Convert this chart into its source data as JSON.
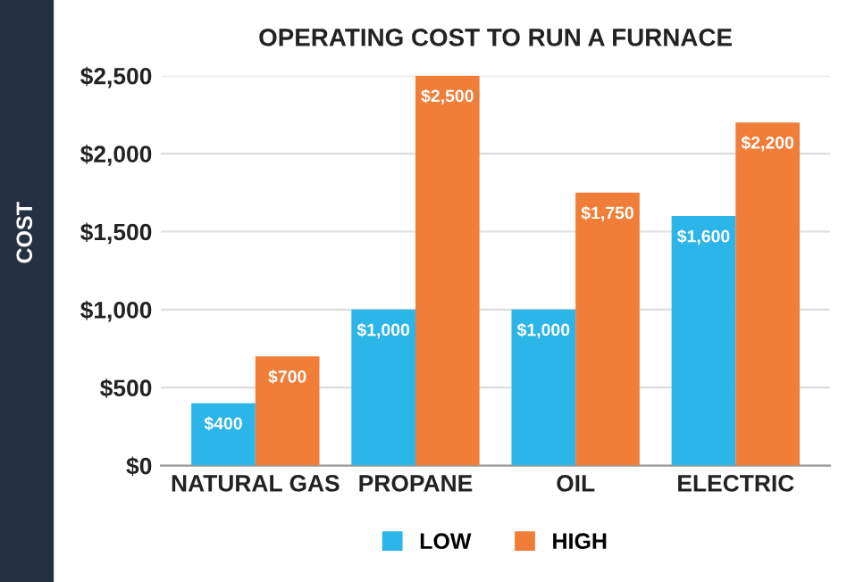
{
  "chart_data": {
    "type": "bar",
    "title": "OPERATING COST TO RUN A FURNACE",
    "ylabel": "COST",
    "categories": [
      "NATURAL GAS",
      "PROPANE",
      "OIL",
      "ELECTRIC"
    ],
    "series": [
      {
        "name": "LOW",
        "color": "#2bb5e8",
        "values": [
          400,
          1000,
          1000,
          1600
        ],
        "value_labels": [
          "$400",
          "$1,000",
          "$1,000",
          "$1,600"
        ]
      },
      {
        "name": "HIGH",
        "color": "#f07e38",
        "values": [
          700,
          2500,
          1750,
          2200
        ],
        "value_labels": [
          "$700",
          "$2,500",
          "$1,750",
          "$2,200"
        ]
      }
    ],
    "ylim": [
      0,
      2500
    ],
    "yticks": [
      {
        "value": 0,
        "label": "$0"
      },
      {
        "value": 500,
        "label": "$500"
      },
      {
        "value": 1000,
        "label": "$1,000"
      },
      {
        "value": 1500,
        "label": "$1,500"
      },
      {
        "value": 2000,
        "label": "$2,000"
      },
      {
        "value": 2500,
        "label": "$2,500"
      }
    ],
    "grid": "y",
    "legend": "bottom"
  }
}
